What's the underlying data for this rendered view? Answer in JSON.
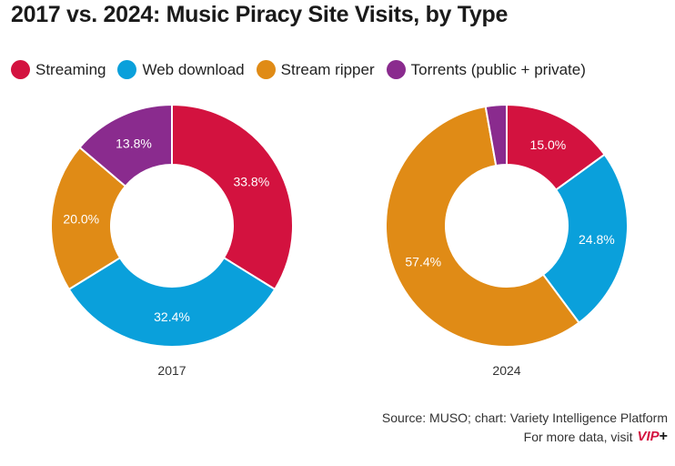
{
  "chart_data": {
    "type": "pie",
    "title": "2017 vs. 2024: Music Piracy Site Visits, by Type",
    "legend": {
      "placement": "top-left",
      "entries": [
        "Streaming",
        "Web download",
        "Stream ripper",
        "Torrents (public + private)"
      ]
    },
    "colors": {
      "Streaming": "#d3123f",
      "Web download": "#0aa0db",
      "Stream ripper": "#e08b16",
      "Torrents (public + private)": "#8a2b8e"
    },
    "charts": [
      {
        "label": "2017",
        "slices": [
          {
            "name": "Streaming",
            "value": 33.8,
            "label": "33.8%"
          },
          {
            "name": "Web download",
            "value": 32.4,
            "label": "32.4%"
          },
          {
            "name": "Stream ripper",
            "value": 20.0,
            "label": "20.0%"
          },
          {
            "name": "Torrents (public + private)",
            "value": 13.8,
            "label": "13.8%"
          }
        ]
      },
      {
        "label": "2024",
        "slices": [
          {
            "name": "Streaming",
            "value": 15.0,
            "label": "15.0%"
          },
          {
            "name": "Web download",
            "value": 24.8,
            "label": "24.8%"
          },
          {
            "name": "Stream ripper",
            "value": 57.4,
            "label": "57.4%"
          },
          {
            "name": "Torrents (public + private)",
            "value": 2.8,
            "label": ""
          }
        ]
      }
    ]
  },
  "footer": {
    "source": "Source: MUSO; chart: Variety Intelligence Platform",
    "more_prefix": "For more data, visit",
    "brand": "VIP",
    "brand_plus": "+"
  }
}
